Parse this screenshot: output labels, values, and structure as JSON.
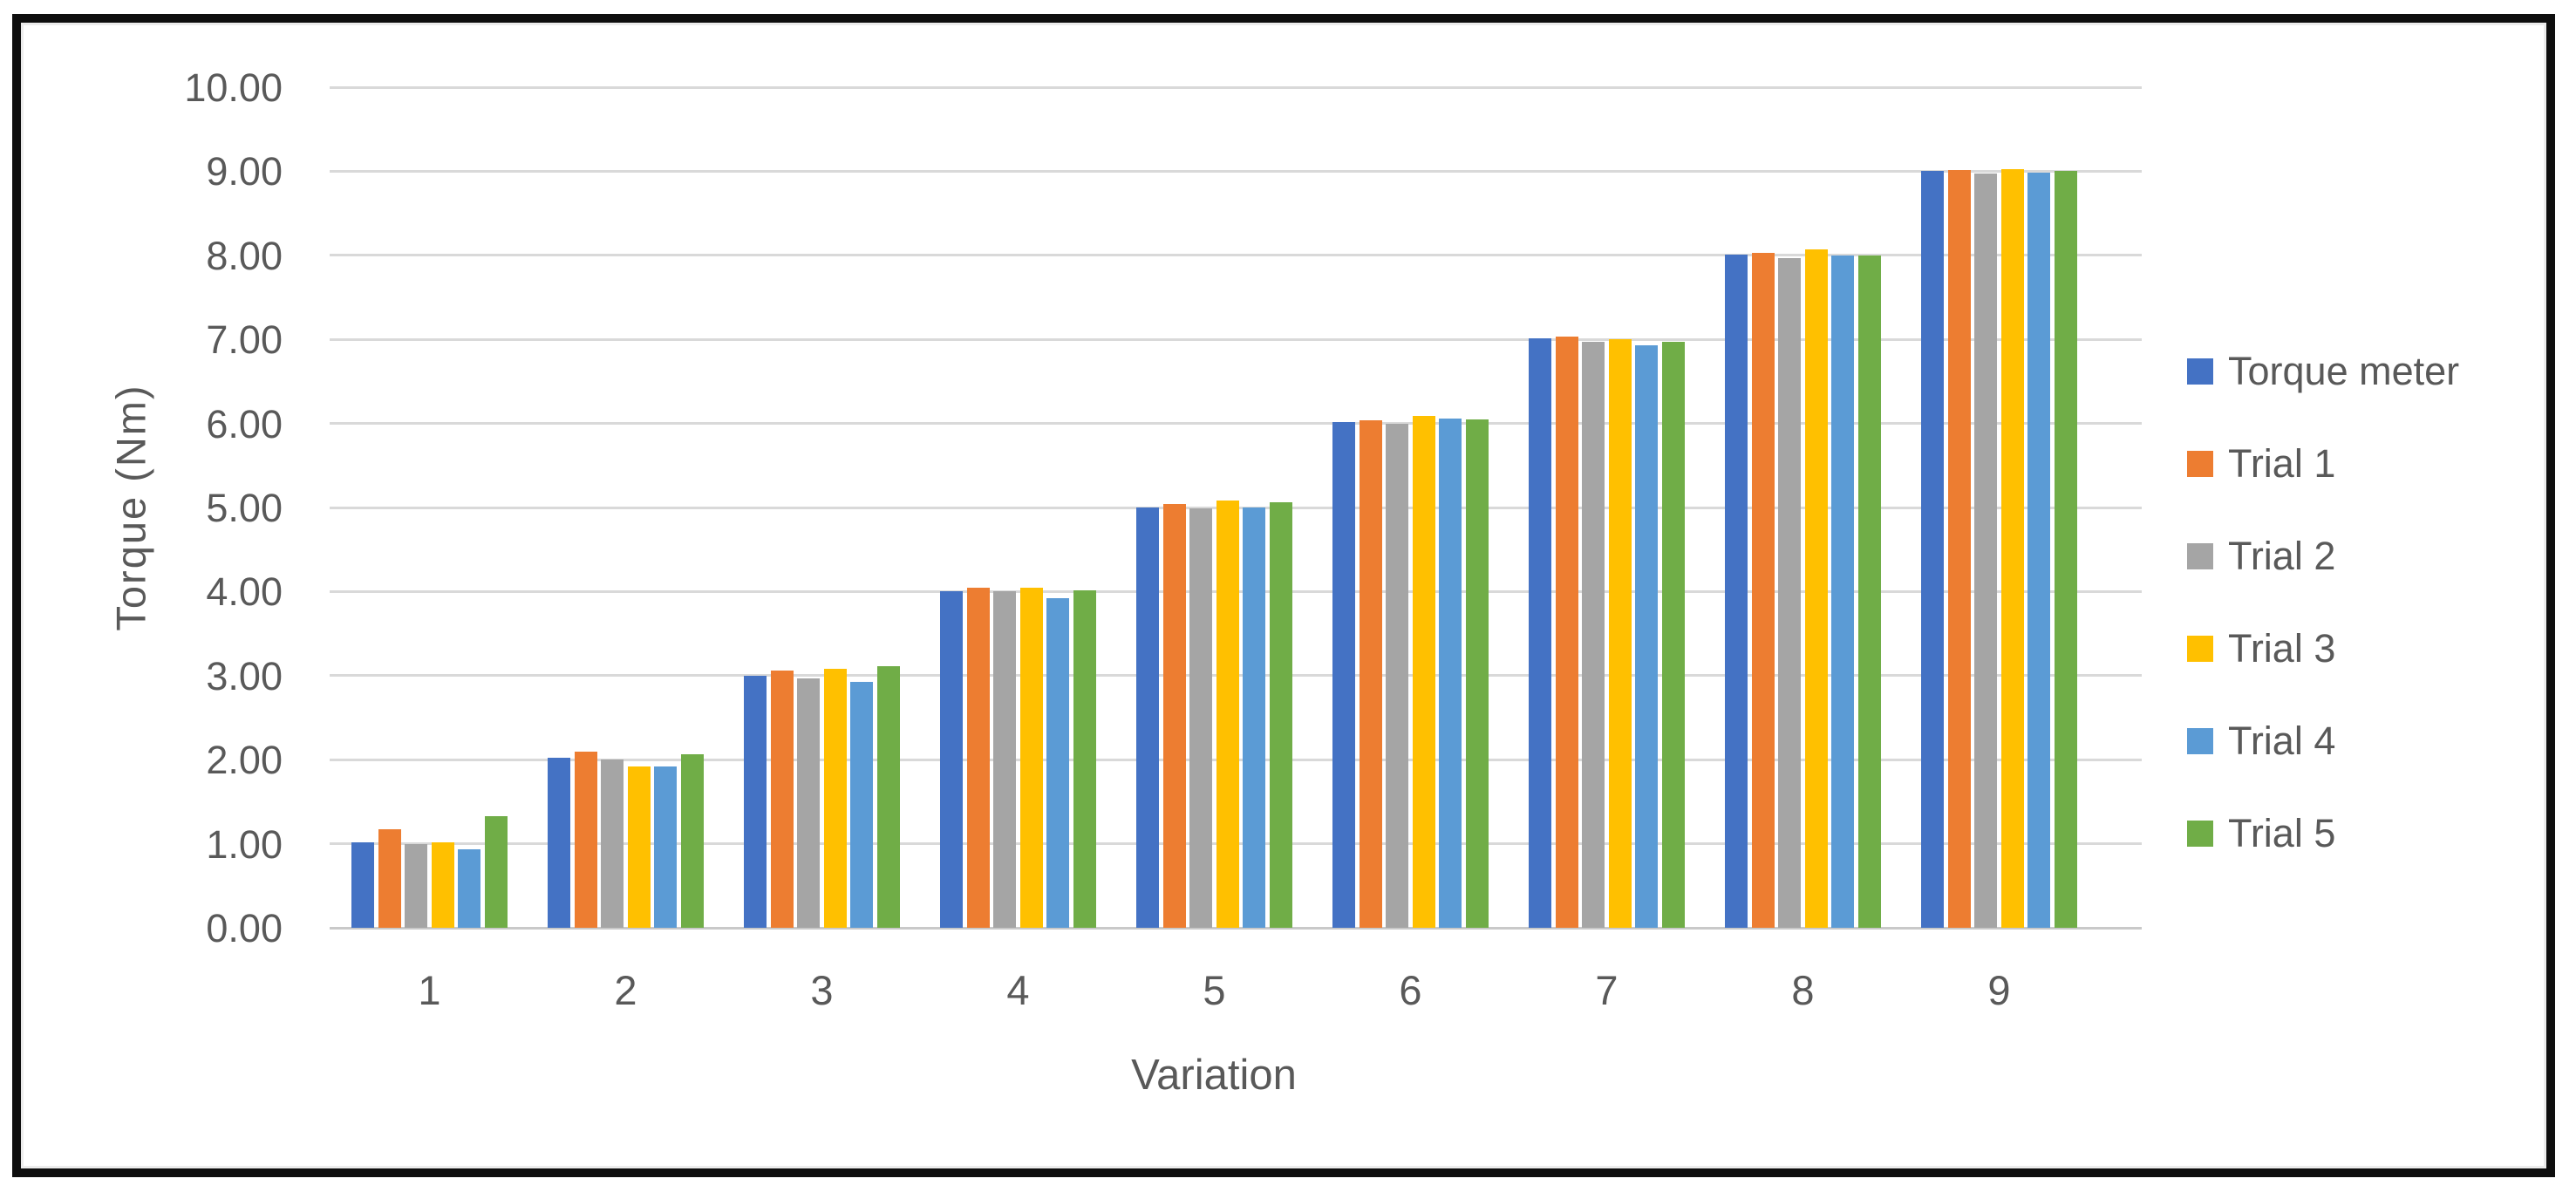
{
  "figure": {
    "background_color": "#ffffff",
    "border_color": "#0e0e0e",
    "gridline_color": "#d9d9d9",
    "text_color": "#595959"
  },
  "chart_data": {
    "type": "bar",
    "title": "",
    "xlabel": "Variation",
    "ylabel": "Torque (Nm)",
    "categories": [
      "1",
      "2",
      "3",
      "4",
      "5",
      "6",
      "7",
      "8",
      "9"
    ],
    "series": [
      {
        "name": "Torque meter",
        "color": "#4472C4",
        "values": [
          1.02,
          2.02,
          3.0,
          4.0,
          5.0,
          6.02,
          7.01,
          8.01,
          9.0
        ]
      },
      {
        "name": "Trial 1",
        "color": "#ED7D31",
        "values": [
          1.17,
          2.1,
          3.06,
          4.05,
          5.04,
          6.04,
          7.03,
          8.03,
          9.01
        ]
      },
      {
        "name": "Trial 2",
        "color": "#A5A5A5",
        "values": [
          1.0,
          2.0,
          2.97,
          4.0,
          4.99,
          6.0,
          6.97,
          7.97,
          8.97
        ]
      },
      {
        "name": "Trial 3",
        "color": "#FFC000",
        "values": [
          1.02,
          1.92,
          3.08,
          4.05,
          5.08,
          6.09,
          7.0,
          8.07,
          9.02
        ]
      },
      {
        "name": "Trial 4",
        "color": "#5B9BD5",
        "values": [
          0.93,
          1.92,
          2.93,
          3.92,
          5.0,
          6.06,
          6.93,
          8.0,
          8.98
        ]
      },
      {
        "name": "Trial 5",
        "color": "#70AD47",
        "values": [
          1.33,
          2.06,
          3.11,
          4.01,
          5.06,
          6.05,
          6.97,
          8.0,
          9.0
        ]
      }
    ],
    "ylim": [
      0,
      10
    ],
    "y_tick_labels": [
      "0.00",
      "1.00",
      "2.00",
      "3.00",
      "4.00",
      "5.00",
      "6.00",
      "7.00",
      "8.00",
      "9.00",
      "10.00"
    ],
    "grid": true,
    "legend_position": "right"
  }
}
